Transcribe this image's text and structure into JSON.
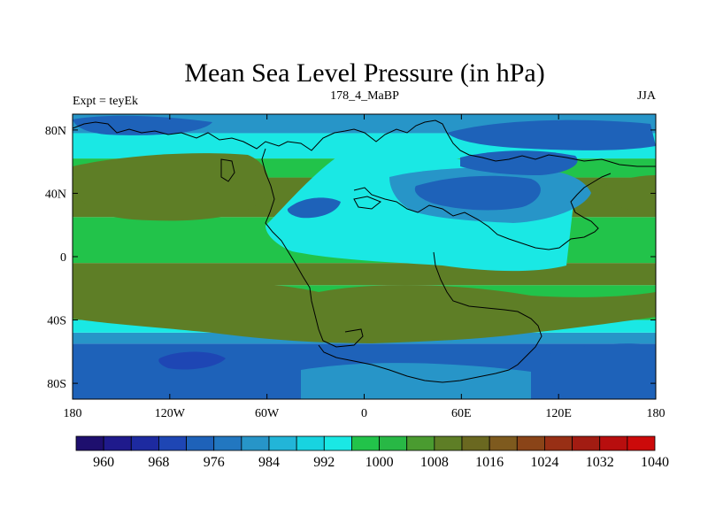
{
  "chart_data": {
    "type": "heatmap",
    "title": "Mean Sea Level Pressure (in hPa)",
    "left_label": "Expt = teyEk",
    "center_label": "178_4_MaBP",
    "right_label": "JJA",
    "x_range": [
      -180,
      180
    ],
    "y_range": [
      -90,
      90
    ],
    "xticks": [
      {
        "value": -180,
        "label": "180"
      },
      {
        "value": -120,
        "label": "120W"
      },
      {
        "value": -60,
        "label": "60W"
      },
      {
        "value": 0,
        "label": "0"
      },
      {
        "value": 60,
        "label": "60E"
      },
      {
        "value": 120,
        "label": "120E"
      },
      {
        "value": 180,
        "label": "180"
      }
    ],
    "yticks": [
      {
        "value": 80,
        "label": "80N"
      },
      {
        "value": 40,
        "label": "40N"
      },
      {
        "value": 0,
        "label": "0"
      },
      {
        "value": -40,
        "label": "40S"
      },
      {
        "value": -80,
        "label": "80S"
      }
    ],
    "colorbar": {
      "colors": [
        "#1e0f6e",
        "#1f1a8c",
        "#1d2aa0",
        "#1e46b4",
        "#1e62b9",
        "#2277c0",
        "#2795c8",
        "#22b5d8",
        "#18d3e0",
        "#1ae8e4",
        "#22c34a",
        "#28b845",
        "#4a9b30",
        "#5e7e26",
        "#6a6820",
        "#7e5a1e",
        "#8a4418",
        "#982f15",
        "#a21c12",
        "#b80e0e",
        "#cc0a0a"
      ],
      "labels": [
        "960",
        "968",
        "976",
        "984",
        "992",
        "1000",
        "1008",
        "1016",
        "1024",
        "1032",
        "1040"
      ]
    },
    "field_bands": [
      {
        "level": "984",
        "color": "#1e62b9",
        "lat_range": [
          -90,
          -55
        ]
      },
      {
        "level": "992",
        "color": "#2795c8",
        "lat_range": [
          -55,
          -48
        ]
      },
      {
        "level": "1000",
        "color": "#1ae8e4",
        "lat_range": [
          -48,
          -40
        ]
      },
      {
        "level": "1008",
        "color": "#22c34a",
        "lat_range": [
          -40,
          -18
        ]
      },
      {
        "level": "1016",
        "color": "#5e7e26",
        "lat_range": [
          -18,
          -4
        ]
      },
      {
        "level": "1008",
        "color": "#22c34a",
        "lat_range": [
          -4,
          25
        ]
      },
      {
        "level": "1016",
        "color": "#5e7e26",
        "lat_range": [
          25,
          50
        ]
      },
      {
        "level": "1008",
        "color": "#22c34a",
        "lat_range": [
          50,
          62
        ]
      },
      {
        "level": "1000",
        "color": "#1ae8e4",
        "lat_range": [
          62,
          78
        ]
      },
      {
        "level": "992",
        "color": "#2795c8",
        "lat_range": [
          78,
          90
        ]
      }
    ]
  }
}
